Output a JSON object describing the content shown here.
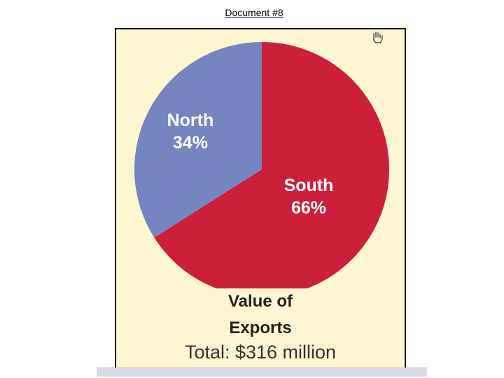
{
  "header": {
    "document_label": "Document #8"
  },
  "chart_data": {
    "type": "pie",
    "categories": [
      "North",
      "South"
    ],
    "values": [
      34,
      66
    ],
    "value_labels": [
      "34%",
      "66%"
    ],
    "colors": [
      "#7585c0",
      "#cc1f3c"
    ],
    "title": "Value of Exports",
    "title_lines": [
      "Value of",
      "Exports"
    ],
    "subtitle": "Total: $316 million",
    "background": "#fdf6d0"
  },
  "icons": {
    "cursor": "hand-pointer-icon"
  }
}
